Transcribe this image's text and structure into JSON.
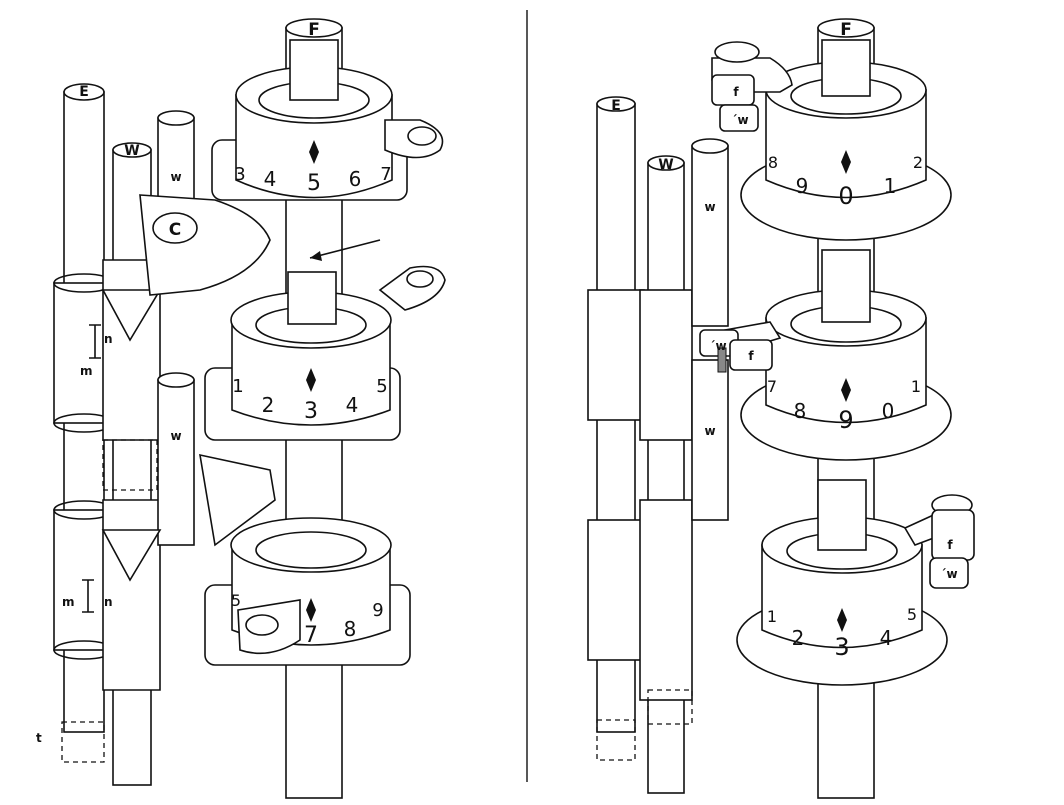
{
  "figure": {
    "left_panel": {
      "shaft_labels": {
        "E": "E",
        "W": "W",
        "w_top": "w",
        "w_mid": "w",
        "F": "F"
      },
      "cam_label": "C",
      "part_labels": {
        "m_upper": "m",
        "n_upper": "n",
        "m_lower": "m",
        "n_lower": "n",
        "t": "t"
      },
      "wheel_top_digits": [
        "3",
        "4",
        "5",
        "6",
        "7"
      ],
      "wheel_mid_digits": [
        "1",
        "2",
        "3",
        "4",
        "5"
      ],
      "wheel_bottom_digits": [
        "5",
        "7",
        "8",
        "9"
      ]
    },
    "right_panel": {
      "shaft_labels": {
        "E": "E",
        "W": "W",
        "w_top": "w",
        "w_mid": "w",
        "F": "F"
      },
      "finger_labels": {
        "f_top": "f",
        "w_top": "´w",
        "f_mid": "f",
        "w_mid": "´w",
        "f_bottom": "f",
        "w_bottom": "´w"
      },
      "wheel_top_digits": [
        "8",
        "9",
        "0",
        "1",
        "2"
      ],
      "wheel_mid_digits": [
        "7",
        "8",
        "9",
        "0",
        "1"
      ],
      "wheel_bottom_digits": [
        "1",
        "2",
        "3",
        "4",
        "5"
      ]
    }
  }
}
